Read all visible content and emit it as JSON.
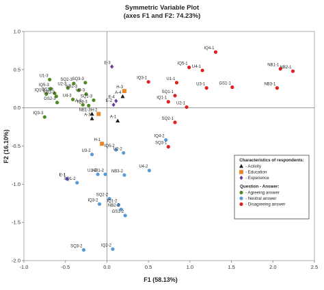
{
  "chart_data": {
    "type": "scatter",
    "title": "Symmetric Variable Plot",
    "subtitle": "(axes F1 and F2: 74.23%)",
    "xlabel": "F1 (58.13%)",
    "ylabel": "F2 (16.10%)",
    "xlim": [
      -1.0,
      2.5
    ],
    "ylim": [
      -2.0,
      1.0
    ],
    "xticks": [
      "-1.0",
      "-0.5",
      "0.0",
      "0.5",
      "1.0",
      "1.5",
      "2.0",
      "2.5"
    ],
    "yticks": [
      "1.0",
      "0.5",
      "0.0",
      "-0.5",
      "-1.0",
      "-1.5",
      "-2.0"
    ],
    "grid": false,
    "legend_position": "right",
    "legend": {
      "title": "Characteristics of respondents:",
      "entries": [
        {
          "label": "Activity",
          "marker": "triangle",
          "color": "#1a1a1a"
        },
        {
          "label": "Education",
          "marker": "square",
          "color": "#e8882a"
        },
        {
          "label": "Experience",
          "marker": "diamond",
          "color": "#6a3d9a"
        }
      ],
      "title2": "Question - Answer:",
      "entries2": [
        {
          "label": "Agreeing answer",
          "marker": "circle",
          "color": "#4d8a22"
        },
        {
          "label": "Neutral answer",
          "marker": "circle",
          "color": "#5b9bd5"
        },
        {
          "label": "Disagreeing answer",
          "marker": "circle",
          "color": "#e02020"
        }
      ]
    },
    "series": [
      {
        "name": "Agreeing answer",
        "marker": "circle",
        "color": "#4d8a22",
        "points": [
          {
            "label": "U1-3",
            "x": -0.69,
            "y": 0.37
          },
          {
            "label": "IQ5-3",
            "x": -0.68,
            "y": 0.25
          },
          {
            "label": "GS1-3",
            "x": -0.63,
            "y": 0.19
          },
          {
            "label": "IQ1-3",
            "x": -0.73,
            "y": 0.18
          },
          {
            "label": "NB3-3",
            "x": -0.61,
            "y": 0.15
          },
          {
            "label": "SQ2-3",
            "x": -0.4,
            "y": 0.32
          },
          {
            "label": "SQ3-3",
            "x": -0.26,
            "y": 0.33
          },
          {
            "label": "U2-3",
            "x": -0.47,
            "y": 0.26
          },
          {
            "label": "NB2-3",
            "x": -0.34,
            "y": 0.23
          },
          {
            "label": "U3-3",
            "x": -0.25,
            "y": 0.18
          },
          {
            "label": "GS2-3",
            "x": -0.6,
            "y": 0.07
          },
          {
            "label": "U4-3",
            "x": -0.41,
            "y": 0.11
          },
          {
            "label": "SQ1-3",
            "x": -0.16,
            "y": 0.1
          },
          {
            "label": "A-2",
            "x": -0.29,
            "y": 0.04
          },
          {
            "label": "IQ4-3",
            "x": -0.22,
            "y": 0.03
          },
          {
            "label": "IQ3-3",
            "x": -0.75,
            "y": -0.12
          }
        ]
      },
      {
        "name": "Neutral answer",
        "marker": "circle",
        "color": "#5b9bd5",
        "points": [
          {
            "label": "U3-2",
            "x": -0.18,
            "y": -0.61
          },
          {
            "label": "IQ5-2",
            "x": 0.11,
            "y": -0.55
          },
          {
            "label": "U2-2",
            "x": 0.2,
            "y": -0.59
          },
          {
            "label": "IQ4-2",
            "x": 0.71,
            "y": -0.42
          },
          {
            "label": "E-1",
            "x": -0.48,
            "y": -0.93
          },
          {
            "label": "U1-2",
            "x": -0.11,
            "y": -0.87
          },
          {
            "label": "NB1-2",
            "x": -0.02,
            "y": -0.87
          },
          {
            "label": "NB3-2",
            "x": 0.21,
            "y": -0.88
          },
          {
            "label": "U4-2",
            "x": 0.51,
            "y": -0.82
          },
          {
            "label": "SQ1-2",
            "x": -0.36,
            "y": -0.98
          },
          {
            "label": "SQ2-2",
            "x": 0.03,
            "y": -1.19
          },
          {
            "label": "IQ3-2",
            "x": -0.09,
            "y": -1.26
          },
          {
            "label": "IQ1-2",
            "x": 0.14,
            "y": -1.27
          },
          {
            "label": "NB2-2",
            "x": 0.17,
            "y": -1.33
          },
          {
            "label": "GS1-2",
            "x": 0.22,
            "y": -1.41
          },
          {
            "label": "SQ3-2",
            "x": -0.28,
            "y": -1.86
          },
          {
            "label": "IQ2-2",
            "x": 0.07,
            "y": -1.85
          }
        ]
      },
      {
        "name": "Disagreeing answer",
        "marker": "circle",
        "color": "#e02020",
        "points": [
          {
            "label": "IQ4-1",
            "x": 1.31,
            "y": 0.73
          },
          {
            "label": "IQ5-1",
            "x": 0.99,
            "y": 0.53
          },
          {
            "label": "U4-1",
            "x": 1.15,
            "y": 0.49
          },
          {
            "label": "NB1-1",
            "x": 2.09,
            "y": 0.51
          },
          {
            "label": "NB2-1",
            "x": 2.24,
            "y": 0.48
          },
          {
            "label": "IQ3-1",
            "x": 0.5,
            "y": 0.34
          },
          {
            "label": "U1-1",
            "x": 0.84,
            "y": 0.33
          },
          {
            "label": "U3-1",
            "x": 1.2,
            "y": 0.26
          },
          {
            "label": "GS1-1",
            "x": 1.51,
            "y": 0.27
          },
          {
            "label": "NB3-1",
            "x": 2.05,
            "y": 0.26
          },
          {
            "label": "SQ1-1",
            "x": 0.82,
            "y": 0.16
          },
          {
            "label": "IQ1-1",
            "x": 0.74,
            "y": 0.08
          },
          {
            "label": "U2-1",
            "x": 0.96,
            "y": 0.01
          },
          {
            "label": "SQ2-1",
            "x": 0.82,
            "y": -0.19
          },
          {
            "label": "SQ3-1",
            "x": 0.74,
            "y": -0.51
          }
        ]
      },
      {
        "name": "Activity",
        "marker": "triangle",
        "color": "#1a1a1a",
        "points": [
          {
            "label": "A-4",
            "x": 0.19,
            "y": 0.15
          },
          {
            "label": "NB1-3",
            "x": -0.18,
            "y": -0.08
          },
          {
            "label": "A-3",
            "x": -0.18,
            "y": -0.14
          },
          {
            "label": "A-1",
            "x": 0.13,
            "y": -0.17
          }
        ]
      },
      {
        "name": "Education",
        "marker": "square",
        "color": "#e8882a",
        "points": [
          {
            "label": "H-3",
            "x": 0.21,
            "y": 0.22
          },
          {
            "label": "H-2",
            "x": -0.1,
            "y": -0.08
          },
          {
            "label": "H-1",
            "x": -0.06,
            "y": -0.47
          }
        ]
      },
      {
        "name": "Experience",
        "marker": "diamond",
        "color": "#6a3d9a",
        "points": [
          {
            "label": "E-3",
            "x": 0.06,
            "y": 0.54
          },
          {
            "label": "E-4",
            "x": 0.11,
            "y": 0.09
          },
          {
            "label": "E-2",
            "x": 0.08,
            "y": 0.04
          },
          {
            "label": "E-1",
            "x": -0.48,
            "y": -0.93
          }
        ]
      }
    ]
  }
}
